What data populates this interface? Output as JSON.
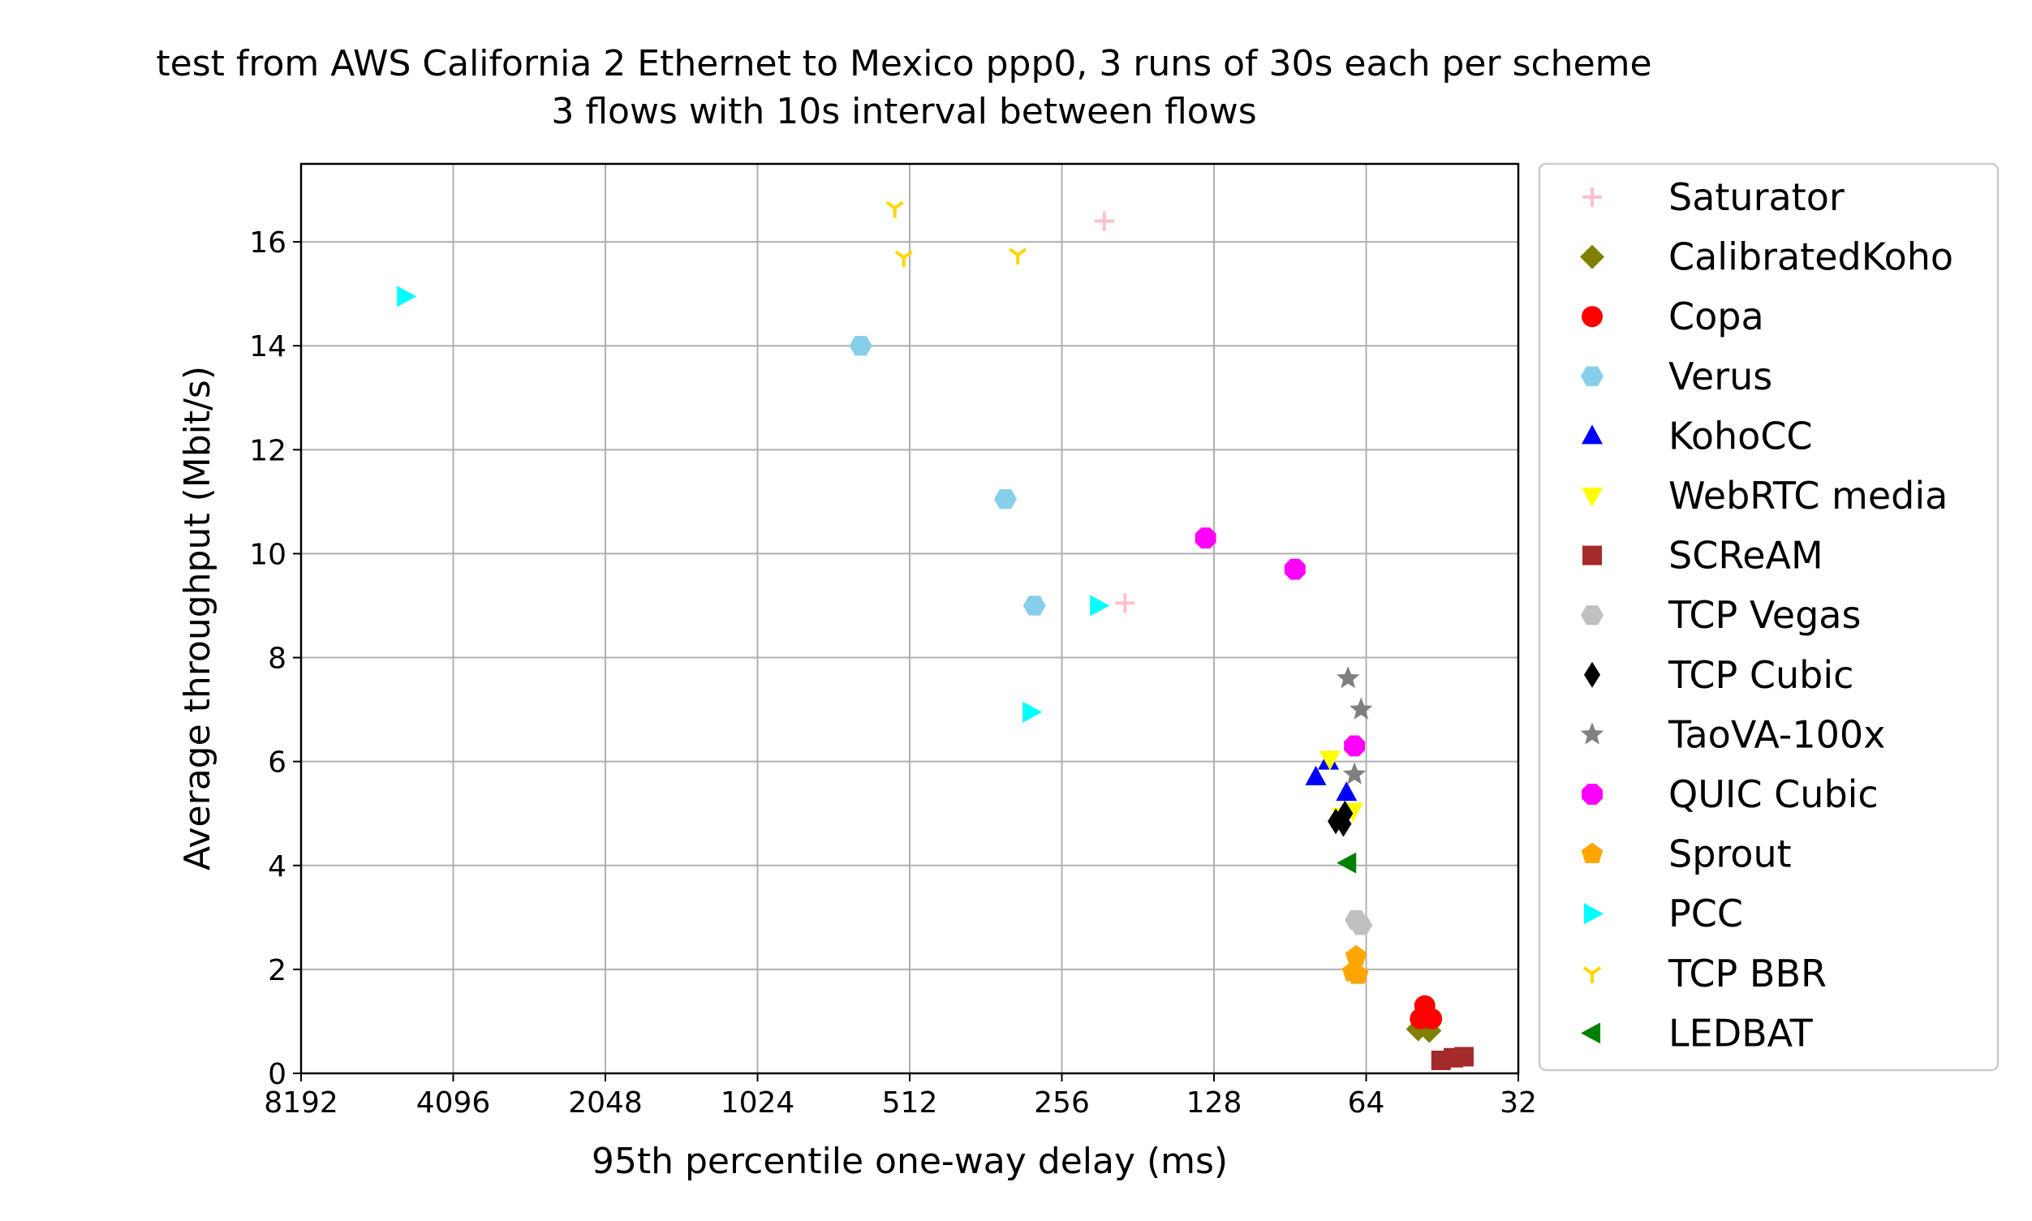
{
  "chart_data": {
    "type": "scatter",
    "title_line1": "test from AWS California 2 Ethernet to Mexico ppp0, 3 runs of 30s each per scheme",
    "title_line2": "3 flows with 10s interval between flows",
    "xlabel": "95th percentile one-way delay (ms)",
    "ylabel": "Average throughput (Mbit/s)",
    "x_scale": "log2",
    "x_inverted": true,
    "xlim": [
      8192,
      32
    ],
    "ylim": [
      0,
      17.5
    ],
    "x_ticks": [
      8192,
      4096,
      2048,
      1024,
      512,
      256,
      128,
      64,
      32
    ],
    "x_tick_labels": [
      "8192",
      "4096",
      "2048",
      "1024",
      "512",
      "256",
      "128",
      "64",
      "32"
    ],
    "y_ticks": [
      0,
      2,
      4,
      6,
      8,
      10,
      12,
      14,
      16
    ],
    "y_tick_labels": [
      "0",
      "2",
      "4",
      "6",
      "8",
      "10",
      "12",
      "14",
      "16"
    ],
    "grid": true,
    "legend_position": "outside-right",
    "series": [
      {
        "name": "Saturator",
        "marker": "plus",
        "color": "#ffc0cb",
        "points": [
          [
            211,
            16.4
          ],
          [
            192,
            9.05
          ]
        ]
      },
      {
        "name": "CalibratedKoho",
        "marker": "diamond",
        "color": "#808000",
        "points": [
          [
            50.5,
            0.85
          ],
          [
            48,
            0.82
          ]
        ]
      },
      {
        "name": "Copa",
        "marker": "circle",
        "color": "#ff0000",
        "points": [
          [
            49,
            1.3
          ],
          [
            50,
            1.05
          ],
          [
            47.5,
            1.05
          ]
        ]
      },
      {
        "name": "Verus",
        "marker": "hexagon",
        "color": "#87ceeb",
        "points": [
          [
            640,
            14.0
          ],
          [
            331,
            11.05
          ],
          [
            290,
            9.0
          ]
        ]
      },
      {
        "name": "KohoCC",
        "marker": "triangle-up",
        "color": "#0000ff",
        "points": [
          [
            80.5,
            5.7
          ],
          [
            76,
            6.0
          ],
          [
            70,
            5.4
          ]
        ]
      },
      {
        "name": "WebRTC media",
        "marker": "triangle-down",
        "color": "#ffff00",
        "points": [
          [
            75.5,
            6.05
          ],
          [
            71.5,
            4.95
          ],
          [
            68,
            5.05
          ]
        ]
      },
      {
        "name": "SCReAM",
        "marker": "square",
        "color": "#a52a2a",
        "points": [
          [
            45.5,
            0.25
          ],
          [
            43,
            0.3
          ],
          [
            41,
            0.32
          ]
        ]
      },
      {
        "name": "TCP Vegas",
        "marker": "hexagon",
        "color": "#c0c0c0",
        "points": [
          [
            67,
            2.95
          ],
          [
            65.5,
            2.85
          ]
        ]
      },
      {
        "name": "TCP Cubic",
        "marker": "thin-diamond",
        "color": "#000000",
        "points": [
          [
            73.5,
            4.85
          ],
          [
            71,
            4.8
          ],
          [
            70.5,
            5.0
          ]
        ]
      },
      {
        "name": "TaoVA-100x",
        "marker": "star",
        "color": "#808080",
        "points": [
          [
            69.5,
            7.6
          ],
          [
            65.5,
            7.0
          ],
          [
            67.5,
            5.75
          ]
        ]
      },
      {
        "name": "QUIC Cubic",
        "marker": "octagon",
        "color": "#ff00ff",
        "points": [
          [
            133,
            10.3
          ],
          [
            88.5,
            9.7
          ],
          [
            67.5,
            6.3
          ]
        ]
      },
      {
        "name": "Sprout",
        "marker": "pentagon",
        "color": "#ffa500",
        "points": [
          [
            67,
            2.25
          ],
          [
            68,
            1.95
          ],
          [
            66.5,
            1.9
          ]
        ]
      },
      {
        "name": "PCC",
        "marker": "triangle-right",
        "color": "#00ffff",
        "points": [
          [
            5100,
            14.95
          ],
          [
            295,
            6.95
          ],
          [
            217,
            9.0
          ]
        ]
      },
      {
        "name": "TCP BBR",
        "marker": "tri-down",
        "color": "#ffd700",
        "points": [
          [
            548,
            16.65
          ],
          [
            526,
            15.7
          ],
          [
            313,
            15.75
          ]
        ]
      },
      {
        "name": "LEDBAT",
        "marker": "triangle-left",
        "color": "#008000",
        "points": [
          [
            69.5,
            4.05
          ]
        ]
      }
    ]
  }
}
